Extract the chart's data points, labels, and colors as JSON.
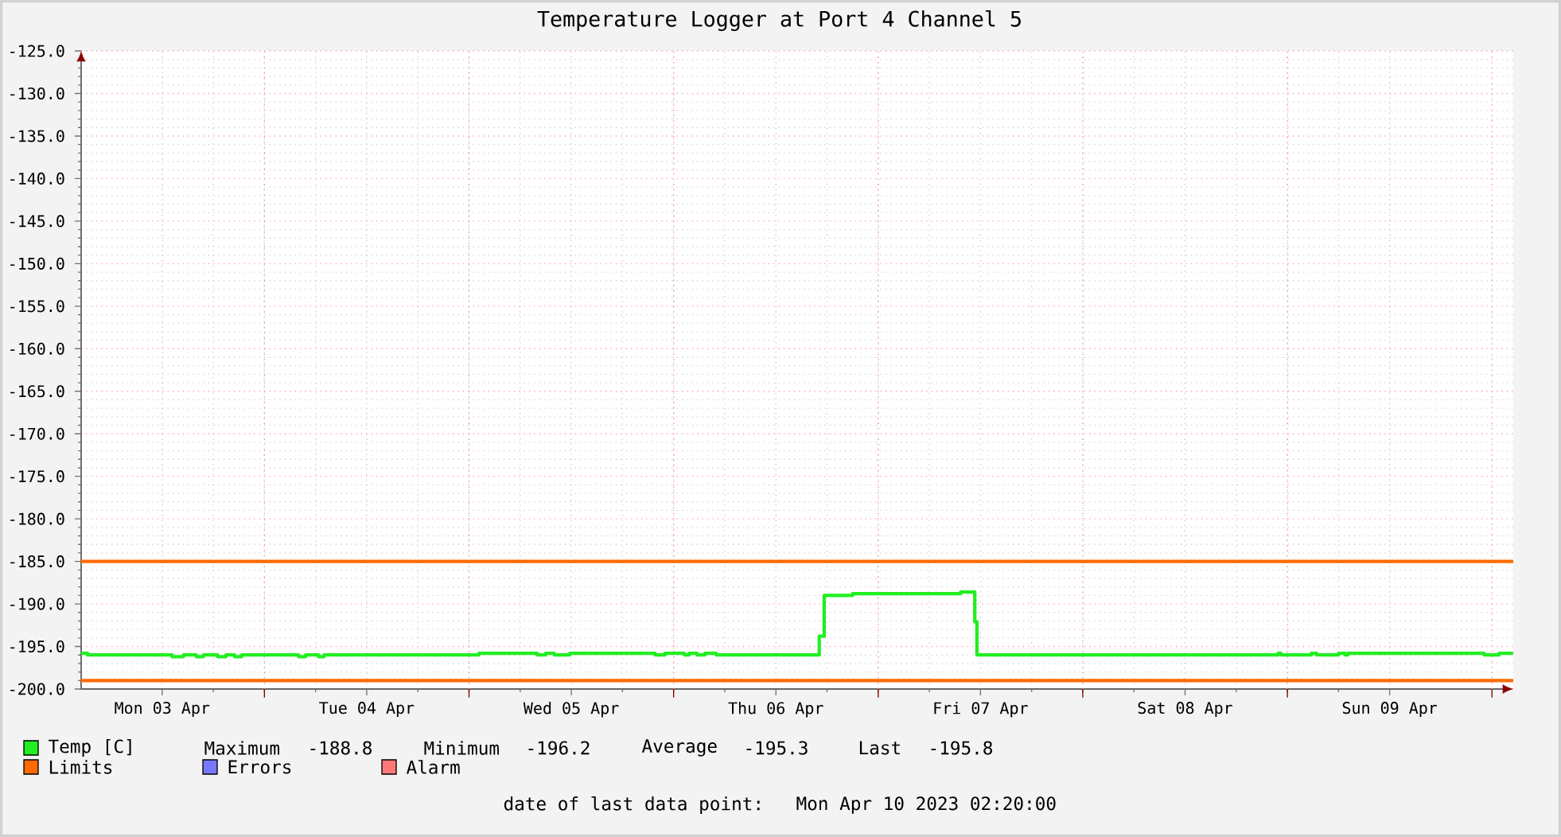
{
  "chart_data": {
    "type": "step",
    "title": "Temperature Logger at Port 4 Channel 5",
    "x": [
      "2023-04-03T02:30",
      "2023-04-03T03:15",
      "2023-04-03T13:10",
      "2023-04-03T14:30",
      "2023-04-03T16:00",
      "2023-04-03T16:50",
      "2023-04-03T18:30",
      "2023-04-03T19:30",
      "2023-04-03T20:30",
      "2023-04-03T21:20",
      "2023-04-04T04:00",
      "2023-04-04T04:50",
      "2023-04-04T06:20",
      "2023-04-04T07:00",
      "2023-04-05T01:10",
      "2023-04-05T08:00",
      "2023-04-05T09:00",
      "2023-04-05T10:00",
      "2023-04-05T11:50",
      "2023-04-05T21:50",
      "2023-04-05T23:00",
      "2023-04-06T01:15",
      "2023-04-06T01:50",
      "2023-04-06T02:45",
      "2023-04-06T03:40",
      "2023-04-06T05:00",
      "2023-04-06T17:05",
      "2023-04-06T17:40",
      "2023-04-06T21:00",
      "2023-04-07T09:40",
      "2023-04-07T11:20",
      "2023-04-07T11:35",
      "2023-04-08T22:55",
      "2023-04-08T23:15",
      "2023-04-09T02:50",
      "2023-04-09T03:25",
      "2023-04-09T06:00",
      "2023-04-09T06:45",
      "2023-04-09T07:05",
      "2023-04-09T23:05",
      "2023-04-10T00:50",
      "2023-04-10T02:20"
    ],
    "series": [
      {
        "name": "Temp [C]",
        "color": "#22ee22",
        "values": [
          -195.8,
          -196.0,
          -196.2,
          -196.0,
          -196.2,
          -196.0,
          -196.2,
          -196.0,
          -196.2,
          -196.0,
          -196.2,
          -196.0,
          -196.2,
          -196.0,
          -195.8,
          -196.0,
          -195.8,
          -196.0,
          -195.8,
          -196.0,
          -195.8,
          -196.0,
          -195.8,
          -196.0,
          -195.8,
          -196.0,
          -193.8,
          -189.0,
          -188.8,
          -188.6,
          -192.1,
          -196.0,
          -195.8,
          -196.0,
          -195.8,
          -196.0,
          -195.8,
          -196.0,
          -195.8,
          -196.0,
          -195.8,
          -195.8
        ]
      },
      {
        "name": "Errors",
        "color": "#7878ff",
        "values": [
          null,
          null,
          null,
          null,
          null,
          null,
          null,
          null,
          null,
          null,
          null,
          null,
          null,
          null,
          null,
          null,
          null,
          null,
          null,
          null,
          null,
          null,
          null,
          null,
          null,
          null,
          null,
          null,
          null,
          null,
          null,
          null,
          null,
          null,
          null,
          null,
          null,
          null,
          null,
          null,
          null,
          null
        ]
      },
      {
        "name": "Alarm",
        "color": "#ff7878",
        "values": [
          null,
          null,
          null,
          null,
          null,
          null,
          null,
          null,
          null,
          null,
          null,
          null,
          null,
          null,
          null,
          null,
          null,
          null,
          null,
          null,
          null,
          null,
          null,
          null,
          null,
          null,
          null,
          null,
          null,
          null,
          null,
          null,
          null,
          null,
          null,
          null,
          null,
          null,
          null,
          null,
          null,
          null
        ]
      }
    ],
    "xlim": [
      "2023-04-03T02:30",
      "2023-04-10T02:30"
    ],
    "xticks": [
      {
        "value": "2023-04-03T12:00",
        "label": "Mon 03 Apr"
      },
      {
        "value": "2023-04-04T12:00",
        "label": "Tue 04 Apr"
      },
      {
        "value": "2023-04-05T12:00",
        "label": "Wed 05 Apr"
      },
      {
        "value": "2023-04-06T12:00",
        "label": "Thu 06 Apr"
      },
      {
        "value": "2023-04-07T12:00",
        "label": "Fri 07 Apr"
      },
      {
        "value": "2023-04-08T12:00",
        "label": "Sat 08 Apr"
      },
      {
        "value": "2023-04-09T12:00",
        "label": "Sun 09 Apr"
      },
      {
        "value": "2023-04-04T00:00",
        "label": null
      },
      {
        "value": "2023-04-05T00:00",
        "label": null
      },
      {
        "value": "2023-04-06T00:00",
        "label": null
      },
      {
        "value": "2023-04-07T00:00",
        "label": null
      },
      {
        "value": "2023-04-08T00:00",
        "label": null
      },
      {
        "value": "2023-04-09T00:00",
        "label": null
      },
      {
        "value": "2023-04-10T00:00",
        "label": null
      }
    ],
    "ylim": [
      -200,
      -125
    ],
    "yticks": [
      {
        "value": -200,
        "label": "-200.0"
      },
      {
        "value": -195,
        "label": "-195.0"
      },
      {
        "value": -190,
        "label": "-190.0"
      },
      {
        "value": -185,
        "label": "-185.0"
      },
      {
        "value": -180,
        "label": "-180.0"
      },
      {
        "value": -175,
        "label": "-175.0"
      },
      {
        "value": -170,
        "label": "-170.0"
      },
      {
        "value": -165,
        "label": "-165.0"
      },
      {
        "value": -160,
        "label": "-160.0"
      },
      {
        "value": -155,
        "label": "-155.0"
      },
      {
        "value": -150,
        "label": "-150.0"
      },
      {
        "value": -145,
        "label": "-145.0"
      },
      {
        "value": -140,
        "label": "-140.0"
      },
      {
        "value": -135,
        "label": "-135.0"
      },
      {
        "value": -130,
        "label": "-130.0"
      },
      {
        "value": -125,
        "label": "-125.0"
      }
    ],
    "ref_lines": [
      {
        "axis": "y",
        "value": -185,
        "label": "Limits",
        "color": "#ff6a00"
      },
      {
        "axis": "y",
        "value": -199,
        "color": "#ff6a00"
      }
    ],
    "annotations": [
      "Maximum",
      "-188.8",
      "Minimum",
      "-196.2",
      "Average",
      "-195.3",
      "Last",
      "-195.8",
      "date of last data point:",
      "Mon Apr 10 2023 02:20:00"
    ],
    "grid": true,
    "legend": "bottom"
  }
}
